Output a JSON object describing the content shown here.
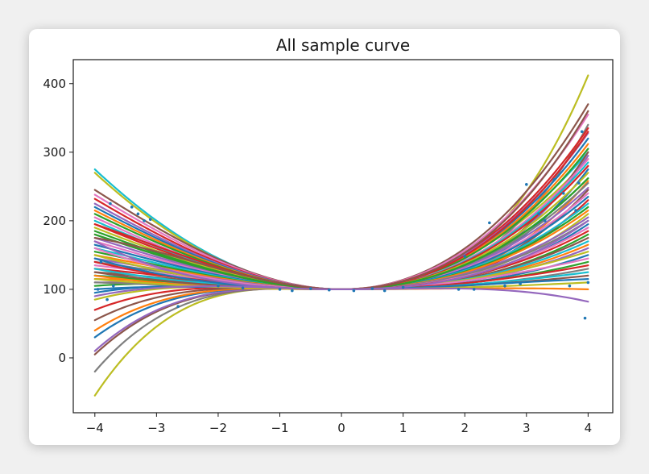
{
  "chart_data": {
    "type": "line",
    "title": "All sample curve",
    "xlabel": "",
    "ylabel": "",
    "xlim": [
      -4.35,
      4.4
    ],
    "ylim": [
      -80,
      435
    ],
    "x_ticks": [
      -4,
      -3,
      -2,
      -1,
      0,
      1,
      2,
      3,
      4
    ],
    "x_tick_labels": [
      "−4",
      "−3",
      "−2",
      "−1",
      "0",
      "1",
      "2",
      "3",
      "4"
    ],
    "y_ticks": [
      0,
      100,
      200,
      300,
      400
    ],
    "y_tick_labels": [
      "0",
      "100",
      "200",
      "300",
      "400"
    ],
    "grid": false,
    "legend": "none",
    "series_model": "y = 100 + a·x^2 + b·x^3 (sampled on x in [-4, 4])",
    "series": [
      {
        "color": "#bcbd22",
        "value_at_neg4": -55,
        "value_at_pos4": 412
      },
      {
        "color": "#17becf",
        "value_at_neg4": 275,
        "value_at_pos4": 300
      },
      {
        "color": "#bcbd22",
        "value_at_neg4": 270,
        "value_at_pos4": 290
      },
      {
        "color": "#8c564b",
        "value_at_neg4": 245,
        "value_at_pos4": 370
      },
      {
        "color": "#e377c2",
        "value_at_neg4": 238,
        "value_at_pos4": 355
      },
      {
        "color": "#7f7f7f",
        "value_at_neg4": -20,
        "value_at_pos4": 340
      },
      {
        "color": "#d62728",
        "value_at_neg4": 232,
        "value_at_pos4": 335
      },
      {
        "color": "#9467bd",
        "value_at_neg4": 225,
        "value_at_pos4": 328
      },
      {
        "color": "#1f77b4",
        "value_at_neg4": 220,
        "value_at_pos4": 320
      },
      {
        "color": "#ff7f0e",
        "value_at_neg4": 215,
        "value_at_pos4": 312
      },
      {
        "color": "#2ca02c",
        "value_at_neg4": 210,
        "value_at_pos4": 305
      },
      {
        "color": "#8c564b",
        "value_at_neg4": 5,
        "value_at_pos4": 300
      },
      {
        "color": "#9467bd",
        "value_at_neg4": 10,
        "value_at_pos4": 295
      },
      {
        "color": "#e377c2",
        "value_at_neg4": 205,
        "value_at_pos4": 290
      },
      {
        "color": "#17becf",
        "value_at_neg4": 200,
        "value_at_pos4": 285
      },
      {
        "color": "#d62728",
        "value_at_neg4": 195,
        "value_at_pos4": 280
      },
      {
        "color": "#1f77b4",
        "value_at_neg4": 30,
        "value_at_pos4": 275
      },
      {
        "color": "#bcbd22",
        "value_at_neg4": 190,
        "value_at_pos4": 270
      },
      {
        "color": "#2ca02c",
        "value_at_neg4": 185,
        "value_at_pos4": 262
      },
      {
        "color": "#ff7f0e",
        "value_at_neg4": 40,
        "value_at_pos4": 258
      },
      {
        "color": "#7f7f7f",
        "value_at_neg4": 180,
        "value_at_pos4": 255
      },
      {
        "color": "#9467bd",
        "value_at_neg4": 175,
        "value_at_pos4": 248
      },
      {
        "color": "#8c564b",
        "value_at_neg4": 55,
        "value_at_pos4": 245
      },
      {
        "color": "#e377c2",
        "value_at_neg4": 170,
        "value_at_pos4": 240
      },
      {
        "color": "#1f77b4",
        "value_at_neg4": 165,
        "value_at_pos4": 235
      },
      {
        "color": "#d62728",
        "value_at_neg4": 70,
        "value_at_pos4": 230
      },
      {
        "color": "#17becf",
        "value_at_neg4": 160,
        "value_at_pos4": 225
      },
      {
        "color": "#2ca02c",
        "value_at_neg4": 155,
        "value_at_pos4": 220
      },
      {
        "color": "#ff7f0e",
        "value_at_neg4": 150,
        "value_at_pos4": 215
      },
      {
        "color": "#bcbd22",
        "value_at_neg4": 85,
        "value_at_pos4": 210
      },
      {
        "color": "#9467bd",
        "value_at_neg4": 145,
        "value_at_pos4": 205
      },
      {
        "color": "#7f7f7f",
        "value_at_neg4": 140,
        "value_at_pos4": 200
      },
      {
        "color": "#1f77b4",
        "value_at_neg4": 95,
        "value_at_pos4": 195
      },
      {
        "color": "#e377c2",
        "value_at_neg4": 135,
        "value_at_pos4": 190
      },
      {
        "color": "#d62728",
        "value_at_neg4": 130,
        "value_at_pos4": 185
      },
      {
        "color": "#2ca02c",
        "value_at_neg4": 105,
        "value_at_pos4": 180
      },
      {
        "color": "#8c564b",
        "value_at_neg4": 125,
        "value_at_pos4": 175
      },
      {
        "color": "#17becf",
        "value_at_neg4": 120,
        "value_at_pos4": 170
      },
      {
        "color": "#ff7f0e",
        "value_at_neg4": 115,
        "value_at_pos4": 165
      },
      {
        "color": "#9467bd",
        "value_at_neg4": 110,
        "value_at_pos4": 160
      },
      {
        "color": "#bcbd22",
        "value_at_neg4": 150,
        "value_at_pos4": 155
      },
      {
        "color": "#1f77b4",
        "value_at_neg4": 100,
        "value_at_pos4": 150
      },
      {
        "color": "#e377c2",
        "value_at_neg4": 160,
        "value_at_pos4": 145
      },
      {
        "color": "#2ca02c",
        "value_at_neg4": 120,
        "value_at_pos4": 140
      },
      {
        "color": "#d62728",
        "value_at_neg4": 140,
        "value_at_pos4": 135
      },
      {
        "color": "#7f7f7f",
        "value_at_neg4": 110,
        "value_at_pos4": 130
      },
      {
        "color": "#17becf",
        "value_at_neg4": 130,
        "value_at_pos4": 125
      },
      {
        "color": "#8c564b",
        "value_at_neg4": 125,
        "value_at_pos4": 120
      },
      {
        "color": "#1f77b4",
        "value_at_neg4": 145,
        "value_at_pos4": 115
      },
      {
        "color": "#ff7f0e",
        "value_at_neg4": 120,
        "value_at_pos4": 100
      },
      {
        "color": "#bcbd22",
        "value_at_neg4": 115,
        "value_at_pos4": 110
      },
      {
        "color": "#9467bd",
        "value_at_neg4": 170,
        "value_at_pos4": 82
      },
      {
        "color": "#2ca02c",
        "value_at_neg4": 180,
        "value_at_pos4": 262
      },
      {
        "color": "#d62728",
        "value_at_neg4": 195,
        "value_at_pos4": 330
      },
      {
        "color": "#8c564b",
        "value_at_neg4": 175,
        "value_at_pos4": 360
      },
      {
        "color": "#9467bd",
        "value_at_neg4": 90,
        "value_at_pos4": 200
      }
    ],
    "samples": [
      {
        "x": -3.95,
        "y": 100
      },
      {
        "x": -3.9,
        "y": 140
      },
      {
        "x": -3.8,
        "y": 85
      },
      {
        "x": -3.75,
        "y": 225
      },
      {
        "x": -3.7,
        "y": 105
      },
      {
        "x": -3.4,
        "y": 220
      },
      {
        "x": -3.3,
        "y": 210
      },
      {
        "x": -3.2,
        "y": 200
      },
      {
        "x": -3.1,
        "y": 202
      },
      {
        "x": -2.65,
        "y": 75
      },
      {
        "x": -2.0,
        "y": 105
      },
      {
        "x": -1.6,
        "y": 102
      },
      {
        "x": -1.0,
        "y": 100
      },
      {
        "x": -0.8,
        "y": 98
      },
      {
        "x": -0.5,
        "y": 101
      },
      {
        "x": -0.2,
        "y": 99
      },
      {
        "x": 0.2,
        "y": 98
      },
      {
        "x": 0.5,
        "y": 101
      },
      {
        "x": 0.7,
        "y": 98
      },
      {
        "x": 1.0,
        "y": 103
      },
      {
        "x": 1.9,
        "y": 100
      },
      {
        "x": 2.0,
        "y": 148
      },
      {
        "x": 2.15,
        "y": 100
      },
      {
        "x": 2.4,
        "y": 197
      },
      {
        "x": 2.65,
        "y": 105
      },
      {
        "x": 2.9,
        "y": 108
      },
      {
        "x": 3.0,
        "y": 253
      },
      {
        "x": 3.2,
        "y": 210
      },
      {
        "x": 3.3,
        "y": 200
      },
      {
        "x": 3.45,
        "y": 260
      },
      {
        "x": 3.6,
        "y": 240
      },
      {
        "x": 3.7,
        "y": 105
      },
      {
        "x": 3.8,
        "y": 215
      },
      {
        "x": 3.85,
        "y": 255
      },
      {
        "x": 3.9,
        "y": 330
      },
      {
        "x": 3.95,
        "y": 58
      },
      {
        "x": 4.0,
        "y": 110
      }
    ],
    "sample_color": "#1f77b4"
  }
}
